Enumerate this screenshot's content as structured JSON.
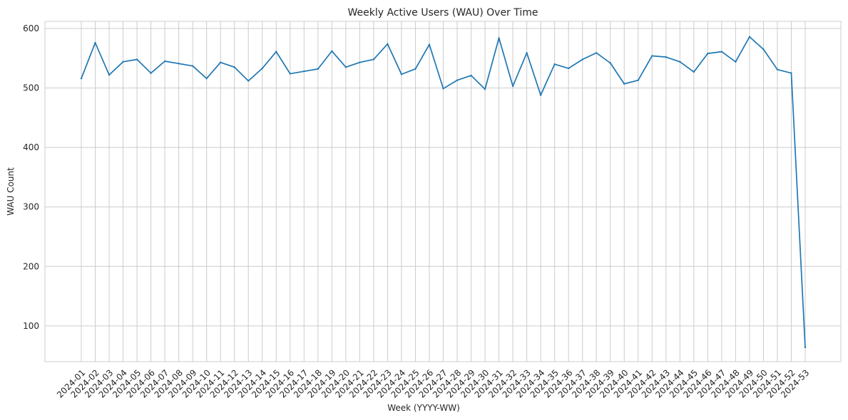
{
  "chart_data": {
    "type": "line",
    "title": "Weekly Active Users (WAU) Over Time",
    "xlabel": "Week (YYYY-WW)",
    "ylabel": "WAU Count",
    "ylim": [
      40,
      612
    ],
    "yticks": [
      100,
      200,
      300,
      400,
      500,
      600
    ],
    "grid": true,
    "legend": "none",
    "line_color": "#1f77b4",
    "categories": [
      "2024-01",
      "2024-02",
      "2024-03",
      "2024-04",
      "2024-05",
      "2024-06",
      "2024-07",
      "2024-08",
      "2024-09",
      "2024-10",
      "2024-11",
      "2024-12",
      "2024-13",
      "2024-14",
      "2024-15",
      "2024-16",
      "2024-17",
      "2024-18",
      "2024-19",
      "2024-20",
      "2024-21",
      "2024-22",
      "2024-23",
      "2024-24",
      "2024-25",
      "2024-26",
      "2024-27",
      "2024-28",
      "2024-29",
      "2024-30",
      "2024-31",
      "2024-32",
      "2024-33",
      "2024-34",
      "2024-35",
      "2024-36",
      "2024-37",
      "2024-38",
      "2024-39",
      "2024-40",
      "2024-41",
      "2024-42",
      "2024-43",
      "2024-44",
      "2024-45",
      "2024-46",
      "2024-47",
      "2024-48",
      "2024-49",
      "2024-50",
      "2024-51",
      "2024-52",
      "2024-53"
    ],
    "series": [
      {
        "values": [
          516,
          576,
          522,
          544,
          548,
          525,
          545,
          541,
          537,
          516,
          543,
          535,
          512,
          533,
          561,
          524,
          528,
          532,
          562,
          535,
          543,
          548,
          574,
          523,
          532,
          573,
          499,
          513,
          521,
          498,
          584,
          503,
          559,
          488,
          540,
          533,
          548,
          559,
          542,
          507,
          513,
          554,
          552,
          544,
          527,
          558,
          561,
          544,
          586,
          565,
          531,
          525,
          64
        ]
      }
    ]
  }
}
